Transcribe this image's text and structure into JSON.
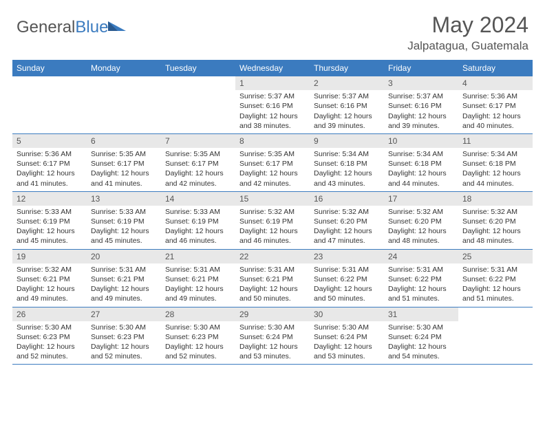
{
  "logo": {
    "text_general": "General",
    "text_blue": "Blue"
  },
  "title": {
    "month": "May 2024",
    "location": "Jalpatagua, Guatemala"
  },
  "weekdays": [
    "Sunday",
    "Monday",
    "Tuesday",
    "Wednesday",
    "Thursday",
    "Friday",
    "Saturday"
  ],
  "colors": {
    "header_bg": "#3b7bbf",
    "header_fg": "#ffffff",
    "daynum_bg": "#e8e8e8",
    "text": "#333333",
    "border": "#3b7bbf"
  },
  "weeks": [
    [
      {
        "num": "",
        "sunrise": "",
        "sunset": "",
        "daylight": ""
      },
      {
        "num": "",
        "sunrise": "",
        "sunset": "",
        "daylight": ""
      },
      {
        "num": "",
        "sunrise": "",
        "sunset": "",
        "daylight": ""
      },
      {
        "num": "1",
        "sunrise": "Sunrise: 5:37 AM",
        "sunset": "Sunset: 6:16 PM",
        "daylight": "Daylight: 12 hours and 38 minutes."
      },
      {
        "num": "2",
        "sunrise": "Sunrise: 5:37 AM",
        "sunset": "Sunset: 6:16 PM",
        "daylight": "Daylight: 12 hours and 39 minutes."
      },
      {
        "num": "3",
        "sunrise": "Sunrise: 5:37 AM",
        "sunset": "Sunset: 6:16 PM",
        "daylight": "Daylight: 12 hours and 39 minutes."
      },
      {
        "num": "4",
        "sunrise": "Sunrise: 5:36 AM",
        "sunset": "Sunset: 6:17 PM",
        "daylight": "Daylight: 12 hours and 40 minutes."
      }
    ],
    [
      {
        "num": "5",
        "sunrise": "Sunrise: 5:36 AM",
        "sunset": "Sunset: 6:17 PM",
        "daylight": "Daylight: 12 hours and 41 minutes."
      },
      {
        "num": "6",
        "sunrise": "Sunrise: 5:35 AM",
        "sunset": "Sunset: 6:17 PM",
        "daylight": "Daylight: 12 hours and 41 minutes."
      },
      {
        "num": "7",
        "sunrise": "Sunrise: 5:35 AM",
        "sunset": "Sunset: 6:17 PM",
        "daylight": "Daylight: 12 hours and 42 minutes."
      },
      {
        "num": "8",
        "sunrise": "Sunrise: 5:35 AM",
        "sunset": "Sunset: 6:17 PM",
        "daylight": "Daylight: 12 hours and 42 minutes."
      },
      {
        "num": "9",
        "sunrise": "Sunrise: 5:34 AM",
        "sunset": "Sunset: 6:18 PM",
        "daylight": "Daylight: 12 hours and 43 minutes."
      },
      {
        "num": "10",
        "sunrise": "Sunrise: 5:34 AM",
        "sunset": "Sunset: 6:18 PM",
        "daylight": "Daylight: 12 hours and 44 minutes."
      },
      {
        "num": "11",
        "sunrise": "Sunrise: 5:34 AM",
        "sunset": "Sunset: 6:18 PM",
        "daylight": "Daylight: 12 hours and 44 minutes."
      }
    ],
    [
      {
        "num": "12",
        "sunrise": "Sunrise: 5:33 AM",
        "sunset": "Sunset: 6:19 PM",
        "daylight": "Daylight: 12 hours and 45 minutes."
      },
      {
        "num": "13",
        "sunrise": "Sunrise: 5:33 AM",
        "sunset": "Sunset: 6:19 PM",
        "daylight": "Daylight: 12 hours and 45 minutes."
      },
      {
        "num": "14",
        "sunrise": "Sunrise: 5:33 AM",
        "sunset": "Sunset: 6:19 PM",
        "daylight": "Daylight: 12 hours and 46 minutes."
      },
      {
        "num": "15",
        "sunrise": "Sunrise: 5:32 AM",
        "sunset": "Sunset: 6:19 PM",
        "daylight": "Daylight: 12 hours and 46 minutes."
      },
      {
        "num": "16",
        "sunrise": "Sunrise: 5:32 AM",
        "sunset": "Sunset: 6:20 PM",
        "daylight": "Daylight: 12 hours and 47 minutes."
      },
      {
        "num": "17",
        "sunrise": "Sunrise: 5:32 AM",
        "sunset": "Sunset: 6:20 PM",
        "daylight": "Daylight: 12 hours and 48 minutes."
      },
      {
        "num": "18",
        "sunrise": "Sunrise: 5:32 AM",
        "sunset": "Sunset: 6:20 PM",
        "daylight": "Daylight: 12 hours and 48 minutes."
      }
    ],
    [
      {
        "num": "19",
        "sunrise": "Sunrise: 5:32 AM",
        "sunset": "Sunset: 6:21 PM",
        "daylight": "Daylight: 12 hours and 49 minutes."
      },
      {
        "num": "20",
        "sunrise": "Sunrise: 5:31 AM",
        "sunset": "Sunset: 6:21 PM",
        "daylight": "Daylight: 12 hours and 49 minutes."
      },
      {
        "num": "21",
        "sunrise": "Sunrise: 5:31 AM",
        "sunset": "Sunset: 6:21 PM",
        "daylight": "Daylight: 12 hours and 49 minutes."
      },
      {
        "num": "22",
        "sunrise": "Sunrise: 5:31 AM",
        "sunset": "Sunset: 6:21 PM",
        "daylight": "Daylight: 12 hours and 50 minutes."
      },
      {
        "num": "23",
        "sunrise": "Sunrise: 5:31 AM",
        "sunset": "Sunset: 6:22 PM",
        "daylight": "Daylight: 12 hours and 50 minutes."
      },
      {
        "num": "24",
        "sunrise": "Sunrise: 5:31 AM",
        "sunset": "Sunset: 6:22 PM",
        "daylight": "Daylight: 12 hours and 51 minutes."
      },
      {
        "num": "25",
        "sunrise": "Sunrise: 5:31 AM",
        "sunset": "Sunset: 6:22 PM",
        "daylight": "Daylight: 12 hours and 51 minutes."
      }
    ],
    [
      {
        "num": "26",
        "sunrise": "Sunrise: 5:30 AM",
        "sunset": "Sunset: 6:23 PM",
        "daylight": "Daylight: 12 hours and 52 minutes."
      },
      {
        "num": "27",
        "sunrise": "Sunrise: 5:30 AM",
        "sunset": "Sunset: 6:23 PM",
        "daylight": "Daylight: 12 hours and 52 minutes."
      },
      {
        "num": "28",
        "sunrise": "Sunrise: 5:30 AM",
        "sunset": "Sunset: 6:23 PM",
        "daylight": "Daylight: 12 hours and 52 minutes."
      },
      {
        "num": "29",
        "sunrise": "Sunrise: 5:30 AM",
        "sunset": "Sunset: 6:24 PM",
        "daylight": "Daylight: 12 hours and 53 minutes."
      },
      {
        "num": "30",
        "sunrise": "Sunrise: 5:30 AM",
        "sunset": "Sunset: 6:24 PM",
        "daylight": "Daylight: 12 hours and 53 minutes."
      },
      {
        "num": "31",
        "sunrise": "Sunrise: 5:30 AM",
        "sunset": "Sunset: 6:24 PM",
        "daylight": "Daylight: 12 hours and 54 minutes."
      },
      {
        "num": "",
        "sunrise": "",
        "sunset": "",
        "daylight": ""
      }
    ]
  ]
}
